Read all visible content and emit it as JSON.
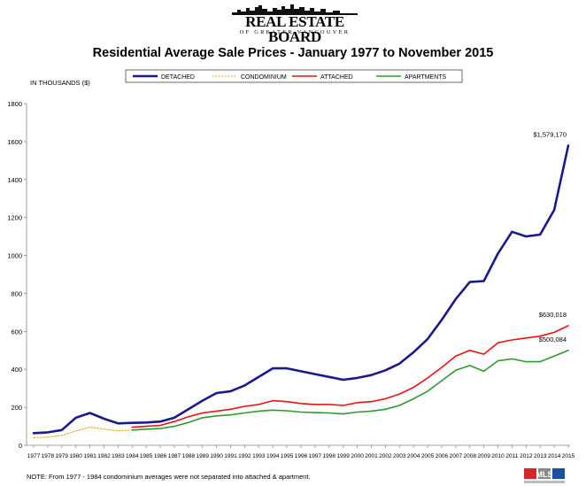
{
  "header": {
    "logo_title": "REAL ESTATE BOARD",
    "logo_subtitle": "OF GREATER VANCOUVER"
  },
  "footer": {
    "note": "NOTE:  From 1977 - 1984 condominium averages were not separated into attached & apartment.",
    "mls_mark": "MLS"
  },
  "colors": {
    "detached": "#1a1a8c",
    "condominium": "#f5a623",
    "attached": "#ee1111",
    "apartments": "#2e9a2e",
    "axis": "#888888"
  },
  "chart_data": {
    "type": "line",
    "title": "Residential Average Sale Prices  -  January 1977 to November 2015",
    "ylabel": "IN THOUSANDS ($)",
    "xlabel": "",
    "ylim": [
      0,
      1800
    ],
    "yticks": [
      0,
      200,
      400,
      600,
      800,
      1000,
      1200,
      1400,
      1600,
      1800
    ],
    "x": [
      "1977",
      "1978",
      "1979",
      "1980",
      "1981",
      "1982",
      "1983",
      "1984",
      "1985",
      "1986",
      "1987",
      "1988",
      "1989",
      "1990",
      "1991",
      "1992",
      "1993",
      "1994",
      "1995",
      "1996",
      "1997",
      "1998",
      "1999",
      "2000",
      "2001",
      "2002",
      "2003",
      "2004",
      "2005",
      "2006",
      "2007",
      "2008",
      "2009",
      "2010",
      "2011",
      "2012",
      "2013",
      "2014",
      "2015"
    ],
    "grid": false,
    "legend_position": "top",
    "series": [
      {
        "name": "DETACHED",
        "style": "solid",
        "values": [
          64,
          68,
          80,
          145,
          170,
          140,
          115,
          118,
          120,
          125,
          145,
          190,
          235,
          275,
          285,
          315,
          360,
          405,
          405,
          390,
          375,
          360,
          345,
          355,
          370,
          395,
          430,
          490,
          560,
          660,
          770,
          860,
          865,
          1010,
          1125,
          1100,
          1110,
          1240,
          1579.17
        ]
      },
      {
        "name": "CONDOMINIUM",
        "style": "dotted",
        "values": [
          40,
          43,
          52,
          75,
          95,
          85,
          76,
          80,
          null,
          null,
          null,
          null,
          null,
          null,
          null,
          null,
          null,
          null,
          null,
          null,
          null,
          null,
          null,
          null,
          null,
          null,
          null,
          null,
          null,
          null,
          null,
          null,
          null,
          null,
          null,
          null,
          null,
          null,
          null
        ]
      },
      {
        "name": "ATTACHED",
        "style": "solid",
        "values": [
          null,
          null,
          null,
          null,
          null,
          null,
          null,
          95,
          100,
          105,
          125,
          150,
          170,
          180,
          190,
          205,
          215,
          235,
          230,
          220,
          215,
          215,
          210,
          225,
          230,
          245,
          270,
          305,
          355,
          410,
          470,
          500,
          480,
          540,
          555,
          565,
          575,
          595,
          630.018
        ]
      },
      {
        "name": "APARTMENTS",
        "style": "solid",
        "values": [
          null,
          null,
          null,
          null,
          null,
          null,
          null,
          80,
          85,
          88,
          100,
          120,
          145,
          155,
          160,
          170,
          180,
          185,
          182,
          175,
          172,
          170,
          165,
          175,
          180,
          190,
          210,
          245,
          285,
          340,
          395,
          420,
          390,
          445,
          455,
          440,
          440,
          470,
          500.084
        ]
      }
    ],
    "annotations": [
      {
        "series": "DETACHED",
        "label": "$1,579,170"
      },
      {
        "series": "ATTACHED",
        "label": "$630,018"
      },
      {
        "series": "APARTMENTS",
        "label": "$500,084"
      }
    ]
  }
}
